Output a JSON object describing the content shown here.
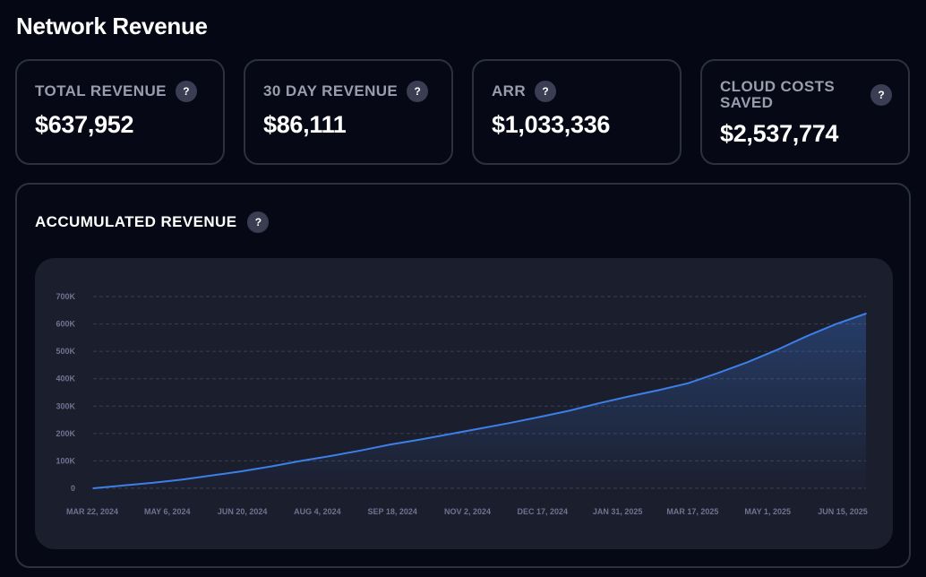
{
  "page": {
    "title": "Network Revenue"
  },
  "cards": [
    {
      "label": "TOTAL REVENUE",
      "value": "$637,952"
    },
    {
      "label": "30 DAY REVENUE",
      "value": "$86,111"
    },
    {
      "label": "ARR",
      "value": "$1,033,336"
    },
    {
      "label": "CLOUD COSTS SAVED",
      "value": "$2,537,774"
    }
  ],
  "help_icon": {
    "glyph": "?",
    "icon": "question-icon"
  },
  "panel": {
    "title": "ACCUMULATED REVENUE"
  },
  "colors": {
    "background": "#050814",
    "line": "#3d7fe8",
    "grid": "#3a3e52",
    "tick": "#6e7391"
  },
  "chart_data": {
    "type": "area",
    "title": "ACCUMULATED REVENUE",
    "xlabel": "",
    "ylabel": "",
    "ylim": [
      0,
      700000
    ],
    "y_ticks": [
      0,
      100000,
      200000,
      300000,
      400000,
      500000,
      600000,
      700000
    ],
    "y_tick_labels": [
      "0",
      "100K",
      "200K",
      "300K",
      "400K",
      "500K",
      "600K",
      "700K"
    ],
    "x_tick_labels": [
      "MAR 22, 2024",
      "MAY 6, 2024",
      "JUN 20, 2024",
      "AUG 4, 2024",
      "SEP 18, 2024",
      "NOV 2, 2024",
      "DEC 17, 2024",
      "JAN 31, 2025",
      "MAR 17, 2025",
      "MAY 1, 2025",
      "JUN 15, 2025"
    ],
    "grid": true,
    "legend": "none",
    "series": [
      {
        "values": [
          0,
          10000,
          20000,
          32000,
          47000,
          62000,
          80000,
          100000,
          118000,
          138000,
          160000,
          178000,
          198000,
          218000,
          238000,
          260000,
          283000,
          310000,
          335000,
          358000,
          383000,
          420000,
          460000,
          505000,
          555000,
          600000,
          637952
        ]
      }
    ]
  }
}
